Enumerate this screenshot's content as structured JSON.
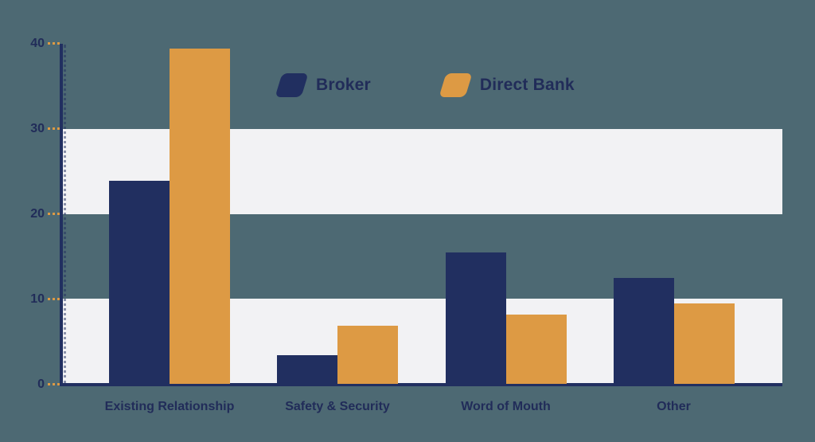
{
  "chart_data": {
    "type": "bar",
    "title": "",
    "xlabel": "",
    "ylabel": "",
    "categories": [
      "Existing Relationship",
      "Safety & Security",
      "Word of Mouth",
      "Other"
    ],
    "series": [
      {
        "name": "Broker",
        "color": "#212f60",
        "values": [
          23.8,
          3.4,
          15.4,
          12.4
        ]
      },
      {
        "name": "Direct Bank",
        "color": "#dd9a44",
        "values": [
          39.3,
          6.8,
          8.1,
          9.4
        ]
      }
    ],
    "ylim": [
      0,
      40
    ],
    "y_ticks": [
      0,
      10,
      20,
      30,
      40
    ],
    "grid": "alternating horizontal highlight bands for ranges 0-10 and 20-30",
    "legend_position": "top-center"
  },
  "colors": {
    "background": "#4d6973",
    "band": "#f2f2f4",
    "axis": "#212f60",
    "tick_mark": "#dd9a44",
    "text": "#212c59"
  }
}
